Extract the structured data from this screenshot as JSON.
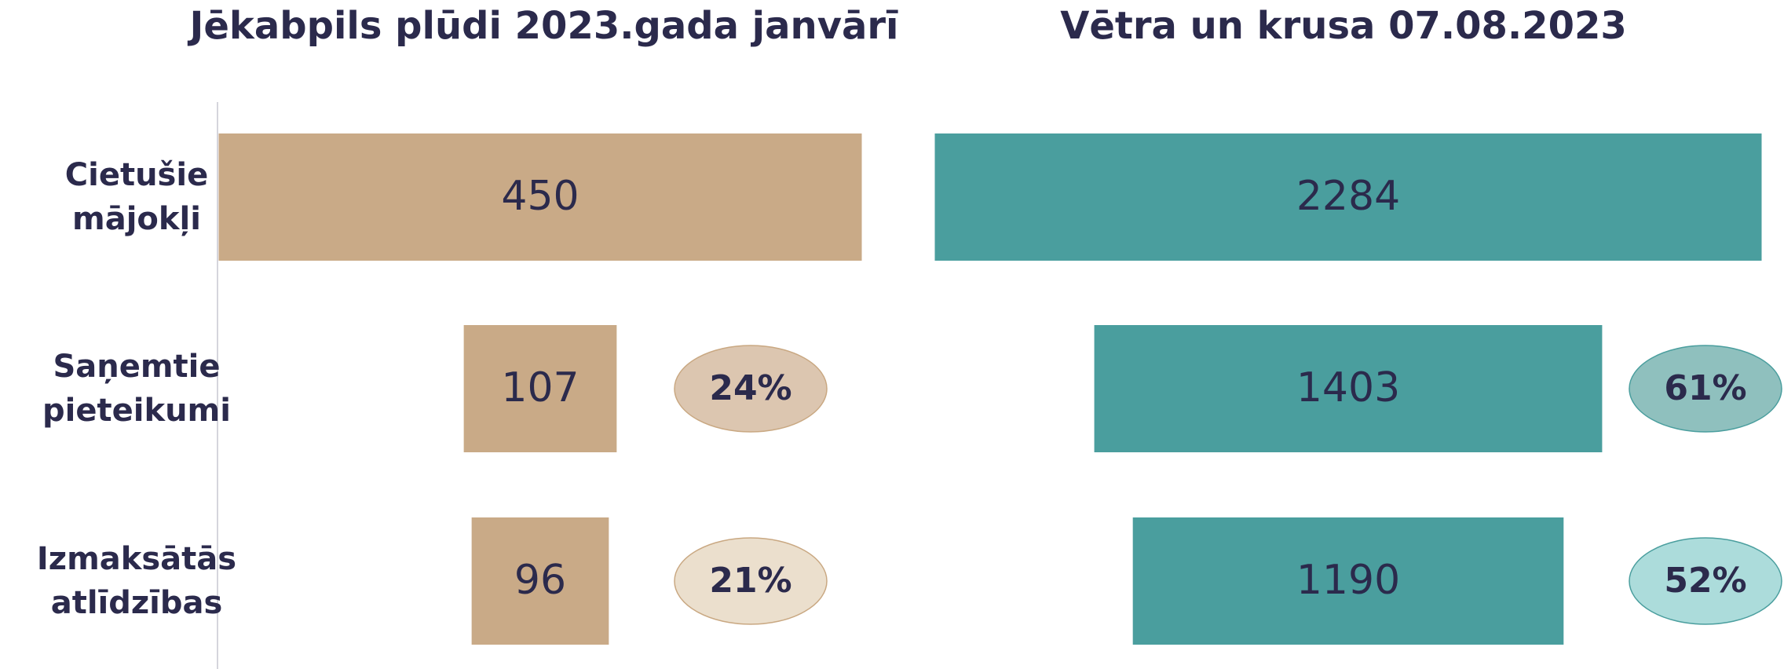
{
  "chart_data": [
    {
      "type": "bar",
      "title": "Jēkabpils plūdi 2023.gada janvārī",
      "categories": [
        "Cietušie mājokļi",
        "Saņemtie pieteikumi",
        "Izmaksātās atlīdzības"
      ],
      "values": [
        450,
        107,
        96
      ],
      "color": "#c9aa87",
      "share_values": [
        24,
        21
      ],
      "share_labels": [
        "24%",
        "21%"
      ],
      "share_colors": [
        "#dcc6b0",
        "#ebdfcd"
      ],
      "share_stroke": "#c9a882"
    },
    {
      "type": "bar",
      "title": "Vētra un krusa 07.08.2023",
      "values": [
        2284,
        1403,
        1190
      ],
      "color": "#4a9e9e",
      "share_values": [
        61,
        52
      ],
      "share_labels": [
        "61%",
        "52%"
      ],
      "share_colors": [
        "#8fc0be",
        "#acdcdb"
      ],
      "share_stroke": "#4a9e9e"
    }
  ]
}
